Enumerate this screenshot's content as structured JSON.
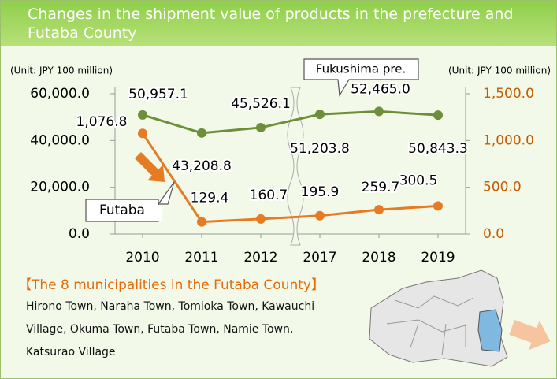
{
  "chart_data": {
    "type": "line",
    "title": "Changes in the shipment value of products in the prefecture and Futaba County",
    "y_unit": "(Unit: JPY 100 million)",
    "y2_unit": "(Unit: JPY 100 million)",
    "categories": [
      "2010",
      "2011",
      "2012",
      "2017",
      "2018",
      "2019"
    ],
    "ylim": [
      0,
      60000
    ],
    "yticks": [
      {
        "value": 0,
        "label": "0.0"
      },
      {
        "value": 20000,
        "label": "20,000.0"
      },
      {
        "value": 40000,
        "label": "40,000.0"
      },
      {
        "value": 60000,
        "label": "60,000.0"
      }
    ],
    "y2lim": [
      0,
      1500
    ],
    "y2ticks": [
      {
        "value": 0,
        "label": "0.0"
      },
      {
        "value": 500,
        "label": "500.0"
      },
      {
        "value": 1000,
        "label": "1,000.0"
      },
      {
        "value": 1500,
        "label": "1,500.0"
      }
    ],
    "series": [
      {
        "name": "Fukushima pre.",
        "color": "#6e8f3a",
        "axis": "y",
        "values": [
          50957.1,
          43208.8,
          45526.1,
          51203.8,
          52465.0,
          50843.3
        ],
        "value_labels": [
          "50,957.1",
          "43,208.8",
          "45,526.1",
          "51,203.8",
          "52,465.0",
          "50,843.3"
        ]
      },
      {
        "name": "Futaba",
        "color": "#e57c23",
        "axis": "y2",
        "values": [
          1076.8,
          129.4,
          160.7,
          195.9,
          259.7,
          300.5
        ],
        "value_labels": [
          "1,076.8",
          "129.4",
          "160.7",
          "195.9",
          "259.7",
          "300.5"
        ]
      }
    ]
  },
  "municipalities": {
    "heading": "【The 8 municipalities in the Futaba County】",
    "lines": [
      "Hirono Town, Naraha Town, Tomioka Town, Kawauchi",
      "Village, Okuma Town, Futaba Town, Namie Town,",
      "Katsurao Village"
    ]
  }
}
